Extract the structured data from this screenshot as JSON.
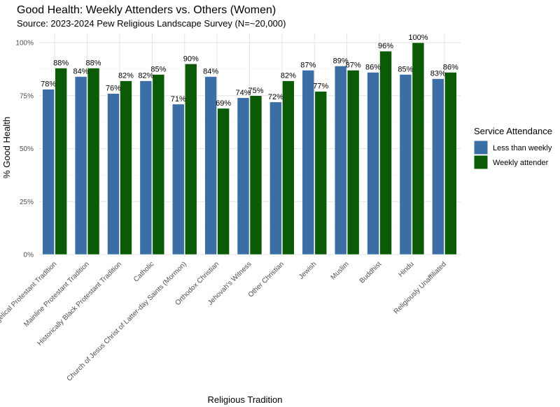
{
  "chart_data": {
    "type": "bar",
    "title": "Good Health: Weekly Attenders vs. Others (Women)",
    "subtitle": "Source: 2023-2024 Pew Religious Landscape Survey (N=~20,000)",
    "xlabel": "Religious Tradition",
    "ylabel": "% Good Health",
    "ylim": [
      0,
      100
    ],
    "yticks": [
      0,
      25,
      50,
      75,
      100
    ],
    "ytick_labels": [
      "0%",
      "25%",
      "50%",
      "75%",
      "100%"
    ],
    "legend_title": "Service Attendance",
    "legend_position": "right",
    "categories": [
      "Evangelical Protestant Tradition",
      "Mainline Protestant Tradition",
      "Historically Black Protestant Tradition",
      "Catholic",
      "Church of Jesus Christ of Latter-day Saints (Mormon)",
      "Orthodox Christian",
      "Jehovah's Witness",
      "Other Christian",
      "Jewish",
      "Muslim",
      "Buddhist",
      "Hindu",
      "Religiously Unaffiliated"
    ],
    "category_labels_visible": [
      "gelical Protestant Tradition",
      "Mainline Protestant Tradition",
      "Historically Black Protestant Tradition",
      "Catholic",
      "Church of Jesus Christ of Latter-day Saints (Mormon)",
      "Orthodox Christian",
      "Jehovah's Witness",
      "Other Christian",
      "Jewish",
      "Muslim",
      "Buddhist",
      "Hindu",
      "Religiously Unaffiliated"
    ],
    "series": [
      {
        "name": "Less than weekly",
        "color": "#3a6ea5",
        "values": [
          78,
          84,
          76,
          82,
          71,
          84,
          74,
          72,
          87,
          89,
          86,
          85,
          83
        ],
        "labels": [
          "78%",
          "84%",
          "76%",
          "82%",
          "71%",
          "84%",
          "74%",
          "72%",
          "87%",
          "89%",
          "86%",
          "85%",
          "83%"
        ]
      },
      {
        "name": "Weekly attender",
        "color": "#0b5a06",
        "values": [
          88,
          88,
          82,
          85,
          90,
          69,
          75,
          82,
          77,
          87,
          96,
          100,
          86
        ],
        "labels": [
          "88%",
          "88%",
          "82%",
          "85%",
          "90%",
          "69%",
          "75%",
          "82%",
          "77%",
          "87%",
          "96%",
          "100%",
          "86%"
        ]
      }
    ]
  }
}
